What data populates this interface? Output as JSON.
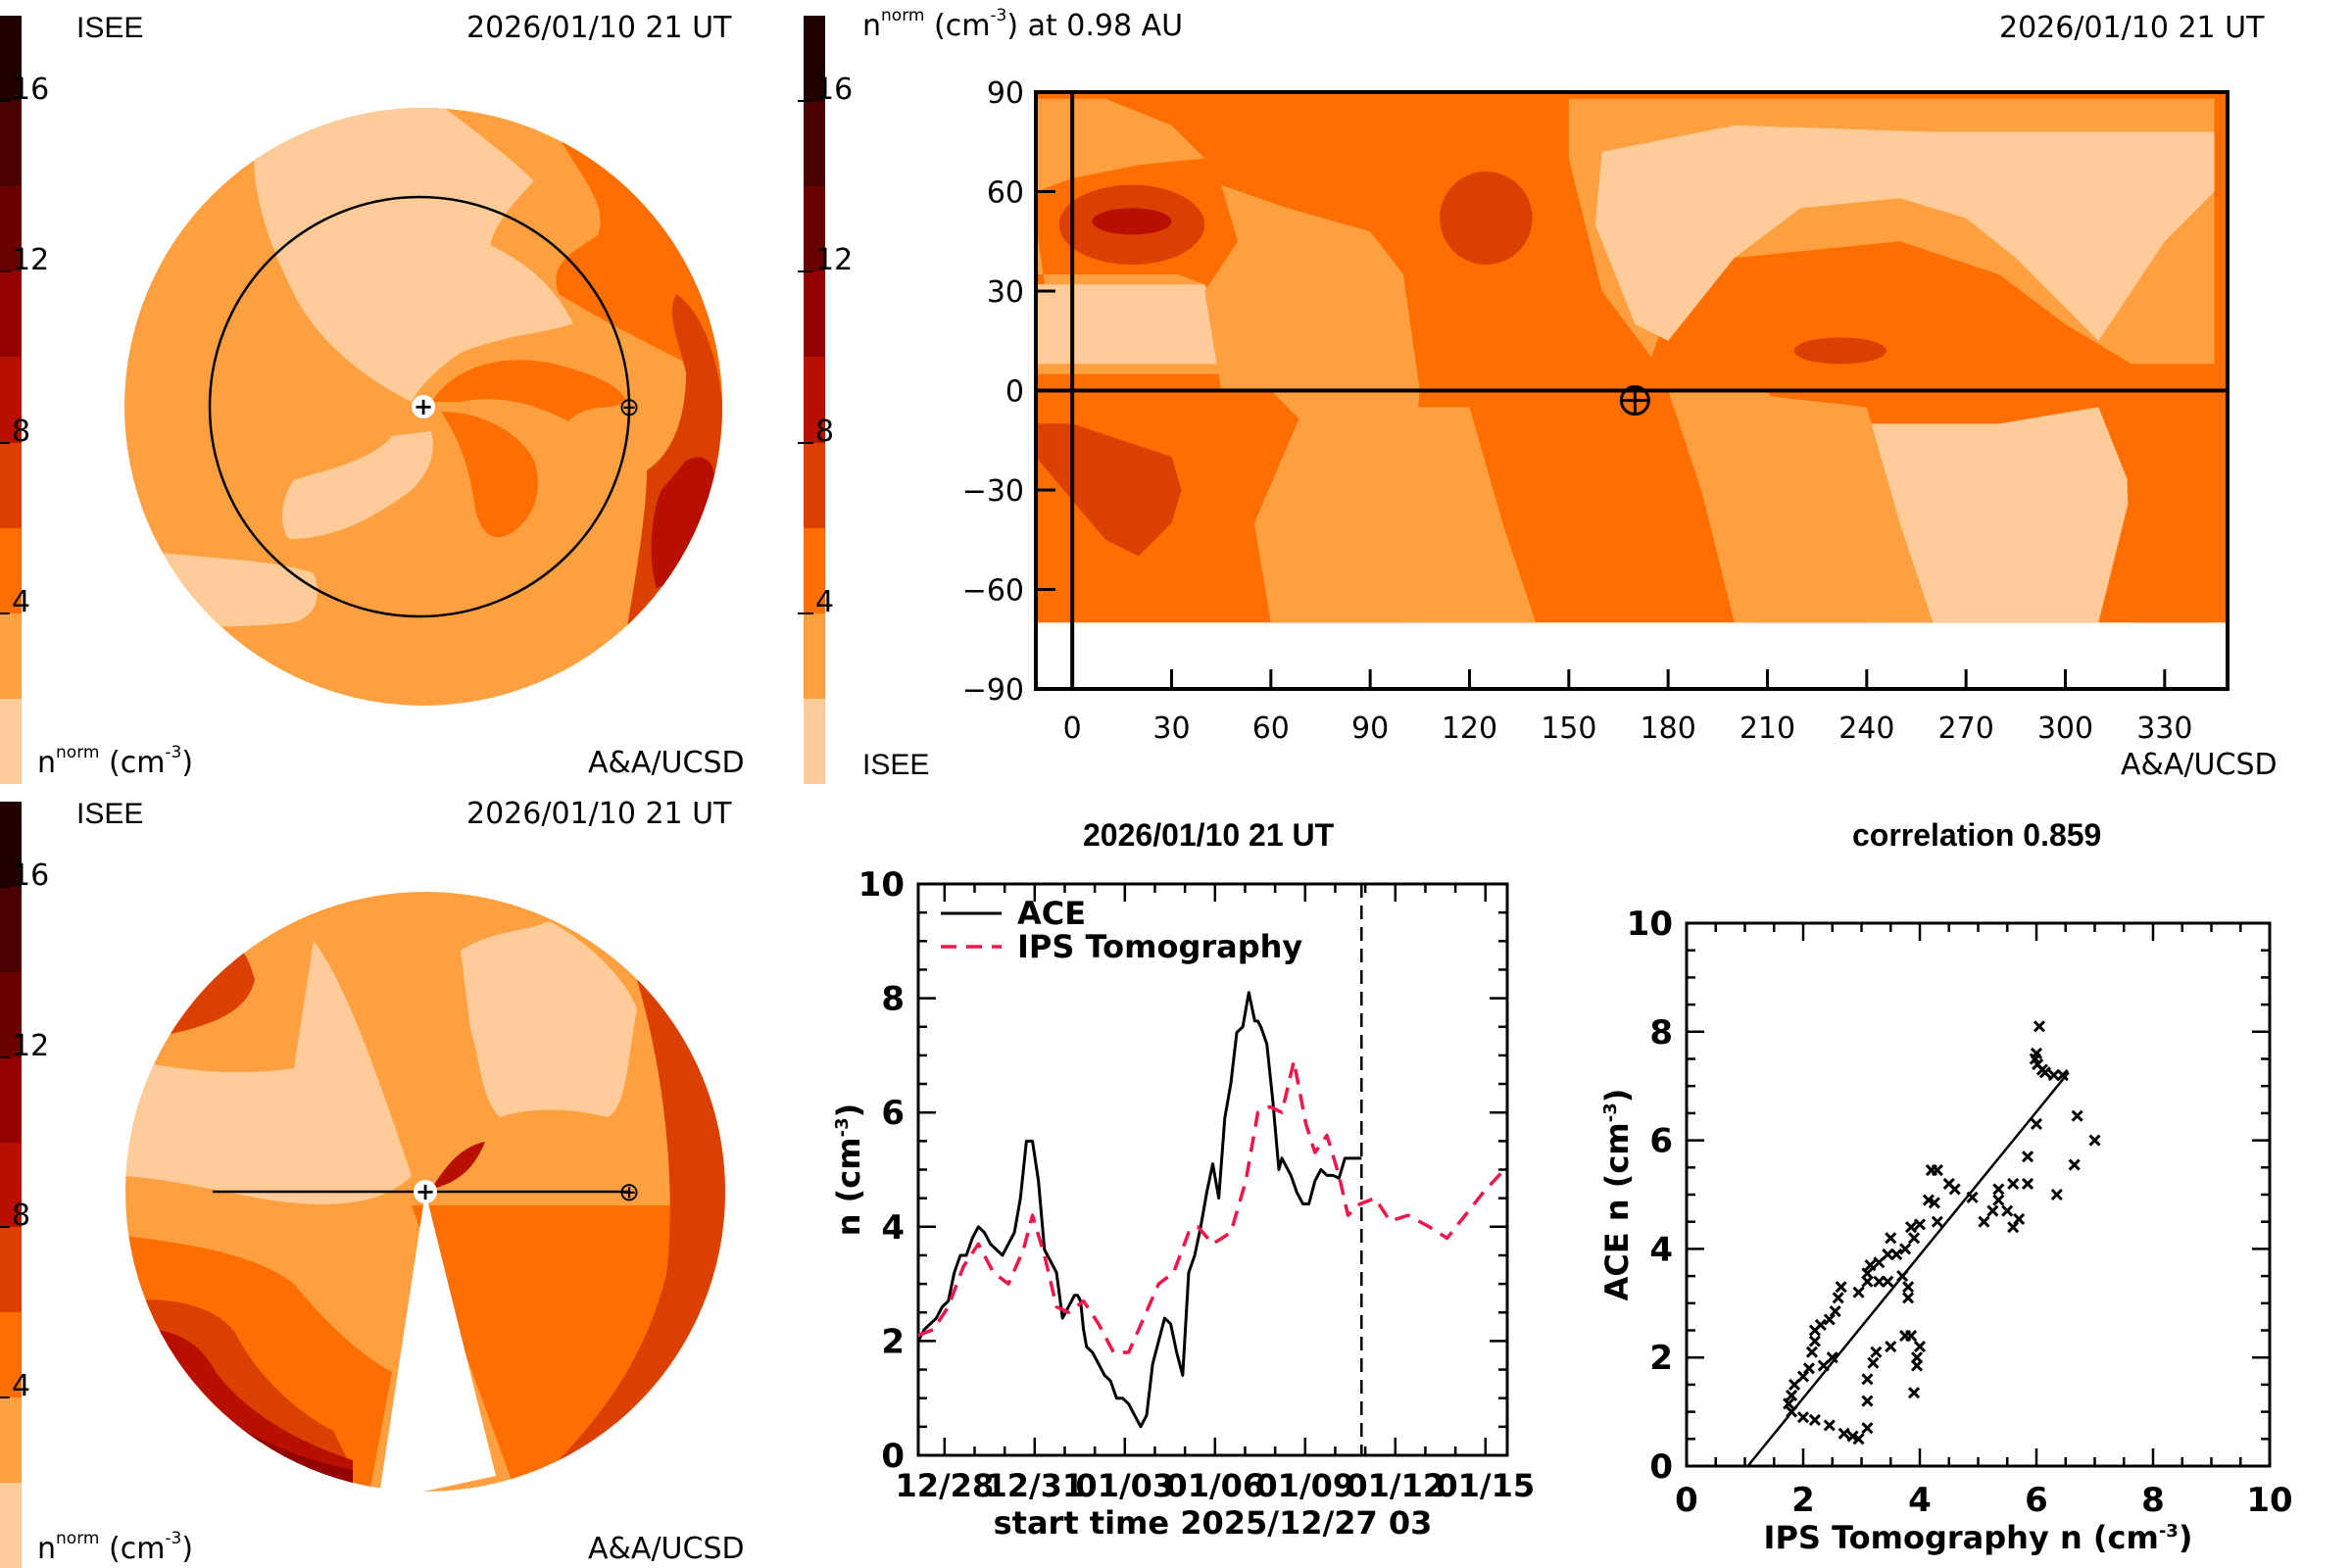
{
  "colors": {
    "levels": [
      "#ffcc99",
      "#ffa040",
      "#ff6e00",
      "#dc4000",
      "#b81000",
      "#920000",
      "#6a0000",
      "#4a0000",
      "#200000"
    ],
    "ace": "#000000",
    "ips": "#f0154a"
  },
  "colorbar": {
    "ticks": [
      "4",
      "8",
      "12",
      "16"
    ],
    "tick_values": [
      4,
      8,
      12,
      16
    ],
    "range": [
      0,
      18
    ],
    "unit_label_main": "n",
    "unit_label_sup": "norm",
    "unit_label_rest": "(cm",
    "unit_label_exp": "-3",
    "unit_label_close": ")"
  },
  "panel_top_left": {
    "source": "ISEE",
    "datetime": "2026/01/10 21 UT",
    "credit": "A&A/UCSD",
    "view": "ecliptic plane (polar view)",
    "sun_symbol": "+",
    "earth_symbol": "⊕"
  },
  "panel_top_right": {
    "title_main": "n",
    "title_sup": "norm",
    "title_rest": "(cm",
    "title_exp": "-3",
    "title_tail": ") at 0.98 AU",
    "datetime": "2026/01/10 21 UT",
    "source": "ISEE",
    "credit": "A&A/UCSD",
    "y_ticks": [
      "90",
      "60",
      "30",
      "0",
      "−30",
      "−60",
      "−90"
    ],
    "y_tick_values": [
      90,
      60,
      30,
      0,
      -30,
      -60,
      -90
    ],
    "x_ticks": [
      "0",
      "30",
      "60",
      "90",
      "120",
      "150",
      "180",
      "210",
      "240",
      "270",
      "300",
      "330"
    ],
    "x_tick_values": [
      0,
      30,
      60,
      90,
      120,
      150,
      180,
      210,
      240,
      270,
      300,
      330
    ],
    "x_range": [
      -11,
      349
    ],
    "y_range": [
      -90,
      90
    ],
    "data_cutoff_lat": -70,
    "earth_position": {
      "lon": 170,
      "lat": -3
    }
  },
  "panel_bottom_left": {
    "source": "ISEE",
    "datetime": "2026/01/10 21 UT",
    "credit": "A&A/UCSD",
    "view": "meridional cut (side view)",
    "sun_symbol": "+",
    "earth_symbol": "⊕"
  },
  "chart_data": [
    {
      "type": "line",
      "title": "2026/01/10 21 UT",
      "xlabel": "start time 2025/12/27 03",
      "ylabel": "n (cm",
      "ylabel_exp": "-3",
      "ylabel_close": ")",
      "ylim": [
        0,
        10
      ],
      "y_ticks": [
        "0",
        "2",
        "4",
        "6",
        "8",
        "10"
      ],
      "y_tick_values": [
        0,
        2,
        4,
        6,
        8,
        10
      ],
      "x_unit": "days since 2025/12/27 03 UT",
      "xlim": [
        0,
        19.6
      ],
      "x_ticks": [
        "12/28",
        "12/31",
        "01/03",
        "01/06",
        "01/09",
        "01/12",
        "01/15"
      ],
      "x_tick_values": [
        0.875,
        3.875,
        6.875,
        9.875,
        12.875,
        15.875,
        18.875
      ],
      "current_time_marker": 14.75,
      "legend": {
        "placement": "top-left",
        "entries": [
          "ACE",
          "IPS Tomography"
        ]
      },
      "series": [
        {
          "name": "ACE",
          "style": "solid",
          "x": [
            0,
            0.2,
            0.4,
            0.6,
            0.8,
            1.0,
            1.2,
            1.4,
            1.6,
            1.8,
            2.0,
            2.2,
            2.3,
            2.4,
            2.6,
            2.8,
            3.0,
            3.2,
            3.4,
            3.6,
            3.8,
            4.0,
            4.1,
            4.2,
            4.4,
            4.6,
            4.8,
            5.0,
            5.2,
            5.3,
            5.4,
            5.5,
            5.6,
            5.8,
            6.0,
            6.2,
            6.4,
            6.6,
            6.8,
            7.0,
            7.2,
            7.4,
            7.6,
            7.8,
            8.0,
            8.2,
            8.4,
            8.6,
            8.8,
            9.0,
            9.2,
            9.4,
            9.6,
            9.8,
            10.0,
            10.2,
            10.4,
            10.6,
            10.8,
            11.0,
            11.2,
            11.3,
            11.4,
            11.6,
            11.8,
            12.0,
            12.1,
            12.2,
            12.4,
            12.6,
            12.8,
            13.0,
            13.2,
            13.4,
            13.6,
            13.8,
            14.0,
            14.2,
            14.4,
            14.6,
            14.75
          ],
          "y": [
            2.0,
            2.2,
            2.3,
            2.4,
            2.6,
            2.7,
            3.2,
            3.5,
            3.5,
            3.8,
            4.0,
            3.9,
            3.8,
            3.7,
            3.6,
            3.5,
            3.7,
            3.9,
            4.5,
            5.5,
            5.5,
            4.8,
            4.2,
            3.6,
            3.4,
            3.2,
            2.4,
            2.6,
            2.8,
            2.8,
            2.7,
            2.2,
            1.9,
            1.8,
            1.6,
            1.4,
            1.3,
            1.0,
            1.0,
            0.9,
            0.7,
            0.5,
            0.7,
            1.6,
            2.0,
            2.4,
            2.3,
            1.8,
            1.4,
            3.2,
            3.5,
            4.0,
            4.6,
            5.1,
            4.5,
            5.9,
            6.5,
            7.4,
            7.5,
            8.1,
            7.6,
            7.6,
            7.5,
            7.2,
            6.2,
            5.0,
            5.2,
            5.1,
            4.9,
            4.6,
            4.4,
            4.4,
            4.8,
            5.0,
            4.9,
            4.9,
            4.85,
            5.2,
            5.2,
            5.2,
            5.2
          ]
        },
        {
          "name": "IPS Tomography",
          "style": "dashed",
          "x": [
            0,
            0.5,
            1.0,
            1.5,
            2.0,
            2.5,
            3.0,
            3.5,
            3.8,
            4.2,
            4.6,
            5.0,
            5.5,
            6.0,
            6.5,
            7.0,
            7.5,
            8.0,
            8.5,
            9.0,
            9.3,
            9.8,
            10.1,
            10.4,
            10.9,
            11.3,
            11.7,
            12.1,
            12.5,
            12.9,
            13.2,
            13.6,
            14.0,
            14.3,
            14.7,
            15.2,
            15.7,
            16.3,
            17.0,
            17.6,
            18.2,
            18.8,
            19.5
          ],
          "y": [
            2.1,
            2.2,
            2.6,
            3.3,
            3.7,
            3.2,
            3.0,
            3.6,
            4.2,
            3.5,
            2.6,
            2.5,
            2.7,
            2.3,
            1.8,
            1.8,
            2.4,
            3.0,
            3.2,
            3.9,
            4.0,
            3.7,
            3.8,
            3.9,
            4.8,
            6.0,
            6.1,
            6.0,
            6.9,
            5.8,
            5.3,
            5.6,
            4.9,
            4.2,
            4.4,
            4.5,
            4.1,
            4.2,
            4.0,
            3.8,
            4.2,
            4.6,
            5.0
          ]
        }
      ]
    },
    {
      "type": "scatter",
      "title": "correlation 0.859",
      "correlation": 0.859,
      "xlabel": "IPS Tomography n (cm",
      "xlabel_exp": "-3",
      "xlabel_close": ")",
      "ylabel": "ACE n (cm",
      "ylabel_exp": "-3",
      "ylabel_close": ")",
      "xlim": [
        0,
        10
      ],
      "ylim": [
        0,
        10
      ],
      "x_ticks": [
        "0",
        "2",
        "4",
        "6",
        "8",
        "10"
      ],
      "x_tick_values": [
        0,
        2,
        4,
        6,
        8,
        10
      ],
      "y_ticks": [
        "0",
        "2",
        "4",
        "6",
        "8",
        "10"
      ],
      "y_tick_values": [
        0,
        2,
        4,
        6,
        8,
        10
      ],
      "marker": "x",
      "fit_line": {
        "x": [
          1.05,
          6.55
        ],
        "y": [
          0.0,
          7.25
        ]
      },
      "points": [
        [
          6.05,
          8.1
        ],
        [
          6.0,
          7.6
        ],
        [
          5.98,
          7.5
        ],
        [
          6.02,
          7.4
        ],
        [
          6.1,
          7.3
        ],
        [
          6.15,
          7.25
        ],
        [
          6.3,
          7.2
        ],
        [
          6.45,
          7.2
        ],
        [
          6.0,
          6.3
        ],
        [
          6.7,
          6.45
        ],
        [
          7.0,
          6.0
        ],
        [
          6.65,
          5.55
        ],
        [
          5.85,
          5.7
        ],
        [
          5.85,
          5.2
        ],
        [
          6.35,
          5.0
        ],
        [
          5.6,
          5.2
        ],
        [
          5.35,
          5.1
        ],
        [
          5.35,
          4.9
        ],
        [
          5.25,
          4.7
        ],
        [
          5.1,
          4.5
        ],
        [
          5.5,
          4.7
        ],
        [
          5.6,
          4.4
        ],
        [
          5.7,
          4.55
        ],
        [
          4.9,
          4.95
        ],
        [
          4.6,
          5.1
        ],
        [
          4.5,
          5.2
        ],
        [
          4.3,
          5.45
        ],
        [
          4.2,
          5.45
        ],
        [
          4.15,
          4.9
        ],
        [
          4.25,
          4.85
        ],
        [
          4.3,
          4.5
        ],
        [
          4.0,
          4.45
        ],
        [
          3.85,
          4.4
        ],
        [
          3.9,
          4.2
        ],
        [
          3.5,
          4.2
        ],
        [
          3.75,
          4.0
        ],
        [
          3.6,
          3.9
        ],
        [
          3.45,
          3.9
        ],
        [
          3.3,
          3.75
        ],
        [
          3.15,
          3.7
        ],
        [
          3.1,
          3.55
        ],
        [
          3.1,
          3.4
        ],
        [
          3.3,
          3.4
        ],
        [
          3.45,
          3.4
        ],
        [
          3.7,
          3.5
        ],
        [
          3.8,
          3.3
        ],
        [
          3.8,
          3.1
        ],
        [
          2.95,
          3.2
        ],
        [
          2.65,
          3.3
        ],
        [
          2.6,
          3.1
        ],
        [
          2.55,
          2.85
        ],
        [
          2.45,
          2.7
        ],
        [
          2.3,
          2.6
        ],
        [
          2.2,
          2.5
        ],
        [
          2.2,
          2.3
        ],
        [
          2.15,
          2.1
        ],
        [
          2.5,
          2.0
        ],
        [
          2.35,
          1.85
        ],
        [
          2.1,
          1.8
        ],
        [
          2.0,
          1.65
        ],
        [
          1.85,
          1.5
        ],
        [
          1.8,
          1.3
        ],
        [
          1.75,
          1.15
        ],
        [
          1.8,
          1.0
        ],
        [
          2.0,
          0.9
        ],
        [
          2.2,
          0.85
        ],
        [
          2.45,
          0.75
        ],
        [
          2.7,
          0.6
        ],
        [
          2.85,
          0.55
        ],
        [
          2.95,
          0.5
        ],
        [
          3.1,
          0.7
        ],
        [
          3.1,
          1.2
        ],
        [
          3.1,
          1.6
        ],
        [
          3.2,
          1.9
        ],
        [
          3.25,
          2.1
        ],
        [
          3.5,
          2.2
        ],
        [
          3.75,
          2.4
        ],
        [
          3.85,
          2.4
        ],
        [
          4.0,
          2.2
        ],
        [
          3.95,
          2.0
        ],
        [
          3.95,
          1.85
        ],
        [
          3.9,
          1.35
        ]
      ]
    }
  ]
}
